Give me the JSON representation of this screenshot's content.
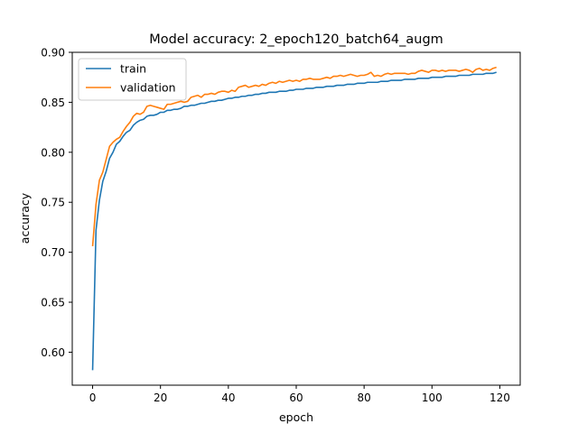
{
  "chart_data": {
    "type": "line",
    "title": "Model accuracy: 2_epoch120_batch64_augm",
    "xlabel": "epoch",
    "ylabel": "accuracy",
    "xlim": [
      -6,
      126
    ],
    "ylim": [
      0.567,
      0.9
    ],
    "xticks": [
      0,
      20,
      40,
      60,
      80,
      100,
      120
    ],
    "yticks": [
      0.6,
      0.65,
      0.7,
      0.75,
      0.8,
      0.85,
      0.9
    ],
    "xtick_labels": [
      "0",
      "20",
      "40",
      "60",
      "80",
      "100",
      "120"
    ],
    "ytick_labels": [
      "0.60",
      "0.65",
      "0.70",
      "0.75",
      "0.80",
      "0.85",
      "0.90"
    ],
    "grid": false,
    "legend": "upper left",
    "series": [
      {
        "name": "train",
        "color": "#1f77b4",
        "values": [
          0.582,
          0.722,
          0.752,
          0.771,
          0.781,
          0.794,
          0.8,
          0.808,
          0.811,
          0.816,
          0.82,
          0.822,
          0.827,
          0.83,
          0.832,
          0.833,
          0.836,
          0.837,
          0.837,
          0.838,
          0.84,
          0.84,
          0.842,
          0.842,
          0.843,
          0.843,
          0.844,
          0.846,
          0.846,
          0.847,
          0.847,
          0.848,
          0.849,
          0.849,
          0.85,
          0.851,
          0.851,
          0.852,
          0.852,
          0.853,
          0.854,
          0.854,
          0.855,
          0.855,
          0.856,
          0.856,
          0.857,
          0.857,
          0.858,
          0.858,
          0.859,
          0.859,
          0.86,
          0.86,
          0.86,
          0.861,
          0.861,
          0.861,
          0.862,
          0.862,
          0.863,
          0.863,
          0.863,
          0.864,
          0.864,
          0.864,
          0.865,
          0.865,
          0.865,
          0.866,
          0.866,
          0.866,
          0.867,
          0.867,
          0.867,
          0.868,
          0.868,
          0.868,
          0.869,
          0.869,
          0.869,
          0.87,
          0.87,
          0.87,
          0.87,
          0.871,
          0.871,
          0.871,
          0.872,
          0.872,
          0.872,
          0.872,
          0.873,
          0.873,
          0.873,
          0.873,
          0.874,
          0.874,
          0.874,
          0.874,
          0.875,
          0.875,
          0.875,
          0.875,
          0.876,
          0.876,
          0.876,
          0.876,
          0.877,
          0.877,
          0.877,
          0.877,
          0.878,
          0.878,
          0.878,
          0.878,
          0.879,
          0.879,
          0.879,
          0.88
        ]
      },
      {
        "name": "validation",
        "color": "#ff7f0e",
        "values": [
          0.706,
          0.748,
          0.772,
          0.78,
          0.793,
          0.806,
          0.81,
          0.813,
          0.815,
          0.821,
          0.826,
          0.83,
          0.836,
          0.839,
          0.838,
          0.84,
          0.846,
          0.847,
          0.846,
          0.845,
          0.844,
          0.843,
          0.848,
          0.848,
          0.849,
          0.85,
          0.851,
          0.85,
          0.851,
          0.855,
          0.856,
          0.857,
          0.855,
          0.858,
          0.858,
          0.859,
          0.858,
          0.86,
          0.861,
          0.861,
          0.86,
          0.862,
          0.861,
          0.865,
          0.866,
          0.867,
          0.865,
          0.866,
          0.867,
          0.866,
          0.868,
          0.867,
          0.869,
          0.87,
          0.869,
          0.871,
          0.87,
          0.871,
          0.872,
          0.871,
          0.872,
          0.871,
          0.873,
          0.873,
          0.874,
          0.873,
          0.873,
          0.873,
          0.874,
          0.875,
          0.874,
          0.876,
          0.876,
          0.877,
          0.876,
          0.877,
          0.878,
          0.877,
          0.876,
          0.877,
          0.877,
          0.878,
          0.88,
          0.876,
          0.877,
          0.876,
          0.878,
          0.879,
          0.878,
          0.879,
          0.879,
          0.879,
          0.879,
          0.878,
          0.879,
          0.879,
          0.881,
          0.882,
          0.881,
          0.88,
          0.882,
          0.882,
          0.881,
          0.882,
          0.881,
          0.882,
          0.882,
          0.882,
          0.881,
          0.882,
          0.883,
          0.882,
          0.88,
          0.883,
          0.884,
          0.882,
          0.883,
          0.882,
          0.884,
          0.885
        ]
      }
    ]
  }
}
